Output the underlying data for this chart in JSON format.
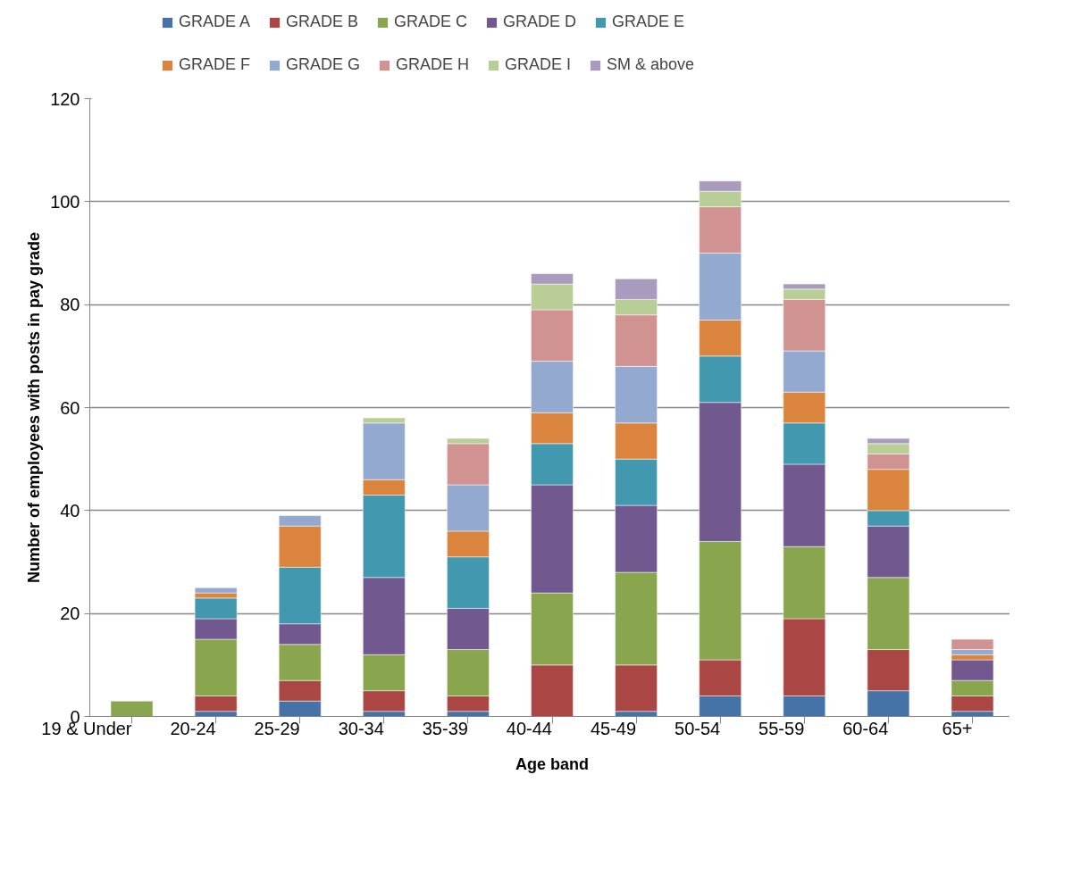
{
  "chart_data": {
    "type": "bar",
    "stacked": true,
    "xlabel": "Age band",
    "ylabel": "Number of employees with posts in pay grade",
    "categories": [
      "19 & Under",
      "20-24",
      "25-29",
      "30-34",
      "35-39",
      "40-44",
      "45-49",
      "50-54",
      "55-59",
      "60-64",
      "65+"
    ],
    "ylim": [
      0,
      120
    ],
    "yticks": [
      0,
      20,
      40,
      60,
      80,
      100,
      120
    ],
    "grid": "y",
    "legend": "top",
    "series": [
      {
        "name": "GRADE A",
        "color": "#4572a7",
        "values": [
          0,
          1,
          3,
          1,
          1,
          0,
          1,
          4,
          4,
          5,
          1
        ]
      },
      {
        "name": "GRADE B",
        "color": "#aa4643",
        "values": [
          0,
          3,
          4,
          4,
          3,
          10,
          9,
          7,
          15,
          8,
          3
        ]
      },
      {
        "name": "GRADE C",
        "color": "#89a54e",
        "values": [
          3,
          11,
          7,
          7,
          9,
          14,
          18,
          23,
          14,
          14,
          3
        ]
      },
      {
        "name": "GRADE D",
        "color": "#71588f",
        "values": [
          0,
          4,
          4,
          15,
          8,
          21,
          13,
          27,
          16,
          10,
          4
        ]
      },
      {
        "name": "GRADE E",
        "color": "#4198af",
        "values": [
          0,
          4,
          11,
          16,
          10,
          8,
          9,
          9,
          8,
          3,
          0
        ]
      },
      {
        "name": "GRADE F",
        "color": "#db843d",
        "values": [
          0,
          1,
          8,
          3,
          5,
          6,
          7,
          7,
          6,
          8,
          1
        ]
      },
      {
        "name": "GRADE G",
        "color": "#93a9cf",
        "values": [
          0,
          1,
          2,
          11,
          9,
          10,
          11,
          13,
          8,
          0,
          1
        ]
      },
      {
        "name": "GRADE H",
        "color": "#d19392",
        "values": [
          0,
          0,
          0,
          0,
          8,
          10,
          10,
          9,
          10,
          3,
          2
        ]
      },
      {
        "name": "GRADE I",
        "color": "#b9cd96",
        "values": [
          0,
          0,
          0,
          1,
          1,
          5,
          3,
          3,
          2,
          2,
          0
        ]
      },
      {
        "name": "SM & above",
        "color": "#a99bbd",
        "values": [
          0,
          0,
          0,
          0,
          0,
          2,
          4,
          2,
          1,
          1,
          0
        ]
      }
    ]
  }
}
